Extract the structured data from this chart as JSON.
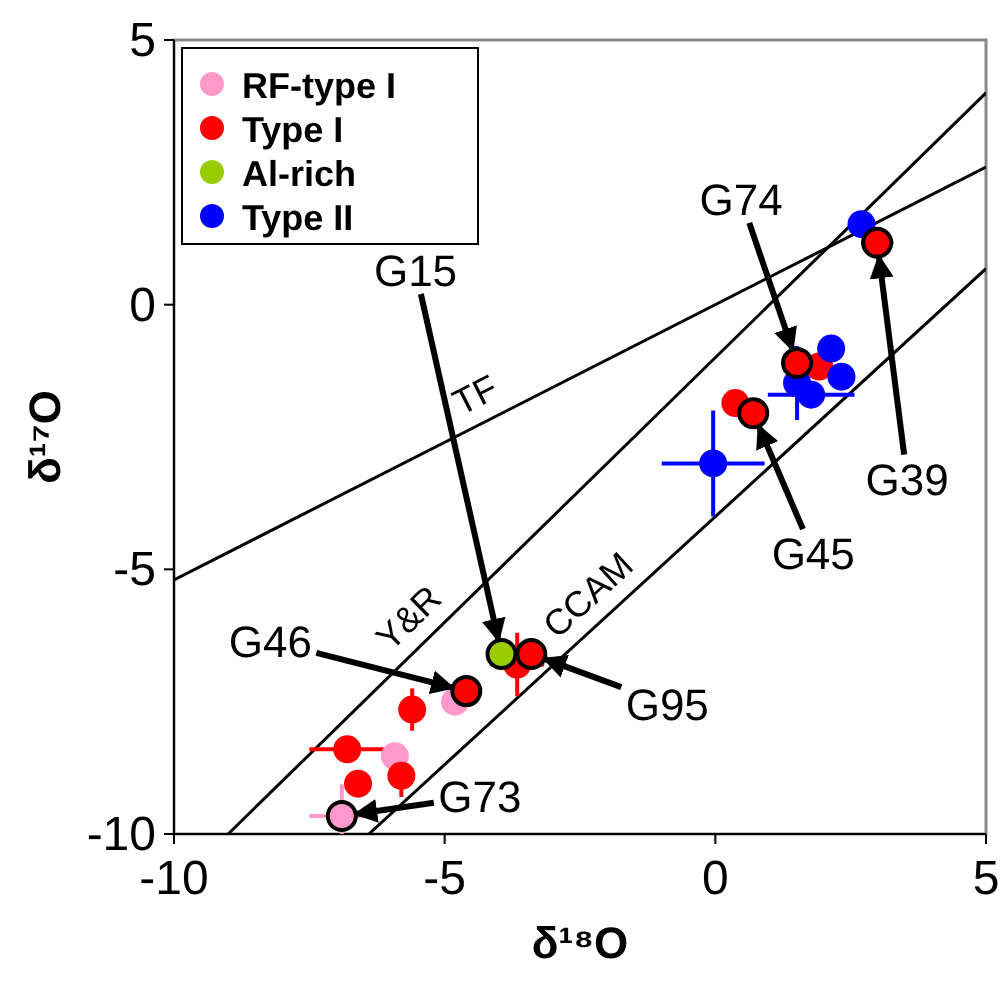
{
  "chart_data": {
    "type": "scatter",
    "xlabel": "δ¹⁸O",
    "ylabel": "δ¹⁷O",
    "xlim": [
      -10,
      5
    ],
    "ylim": [
      -10,
      5
    ],
    "xticks": [
      -10,
      -5,
      0,
      5
    ],
    "yticks": [
      -10,
      -5,
      0,
      5
    ],
    "grid": false,
    "legend": "top left",
    "marker": "circle",
    "series": [
      {
        "name": "TF",
        "type": "line",
        "marker": "none",
        "color": "#000000",
        "x": [
          -10,
          5
        ],
        "values": [
          -5.2,
          2.6
        ]
      },
      {
        "name": "Y&R",
        "type": "line",
        "marker": "none",
        "color": "#000000",
        "x": [
          -9,
          5
        ],
        "values": [
          -10,
          4
        ]
      },
      {
        "name": "CCAM",
        "type": "line",
        "marker": "none",
        "color": "#000000",
        "x": [
          -6.4,
          5
        ],
        "values": [
          -10,
          0.68
        ]
      },
      {
        "name": "RF-type I",
        "color": "#ff99cc",
        "x": [
          -6.9,
          -4.81,
          -5.92
        ],
        "values": [
          -9.66,
          -7.5,
          -8.53
        ],
        "xerrors": [
          0.6,
          null,
          null
        ],
        "errors": [
          0.6,
          null,
          null
        ]
      },
      {
        "name": "Type I",
        "color": "#ff0000",
        "x": [
          -3.4,
          -3.66,
          -4.6,
          -5.6,
          -5.8,
          -6.8,
          -6.6,
          0.7,
          0.37,
          1.51,
          1.92,
          2.99
        ],
        "values": [
          -6.6,
          -6.8,
          -7.3,
          -7.65,
          -8.9,
          -8.4,
          -9.05,
          -2.05,
          -1.86,
          -1.1,
          -1.17,
          1.17
        ],
        "xerrors": [
          null,
          0.5,
          null,
          null,
          null,
          0.7,
          null,
          null,
          null,
          null,
          null,
          0.3
        ],
        "errors": [
          null,
          0.6,
          null,
          0.4,
          0.4,
          null,
          null,
          null,
          null,
          null,
          null,
          null
        ]
      },
      {
        "name": "Al-rich",
        "color": "#99cc00",
        "x": [
          -3.95
        ],
        "values": [
          -6.6
        ]
      },
      {
        "name": "Type II",
        "color": "#0000ff",
        "x": [
          2.7,
          -0.04,
          2.14,
          2.33,
          1.77,
          1.51
        ],
        "values": [
          1.52,
          -3.0,
          -0.83,
          -1.36,
          -1.7,
          -1.48
        ],
        "xerrors": [
          null,
          0.95,
          null,
          null,
          0.8,
          null
        ],
        "errors": [
          null,
          1.0,
          null,
          null,
          null,
          0.7
        ]
      }
    ],
    "annotations": [
      {
        "text": "G74",
        "x": 1.51,
        "y": -1.1
      },
      {
        "text": "G39",
        "x": 2.99,
        "y": 1.17
      },
      {
        "text": "G45",
        "x": 0.7,
        "y": -2.05
      },
      {
        "text": "G15",
        "x": -3.95,
        "y": -6.6
      },
      {
        "text": "G46",
        "x": -4.6,
        "y": -7.3
      },
      {
        "text": "G95",
        "x": -3.4,
        "y": -6.6
      },
      {
        "text": "G73",
        "x": -6.9,
        "y": -9.66
      }
    ]
  }
}
